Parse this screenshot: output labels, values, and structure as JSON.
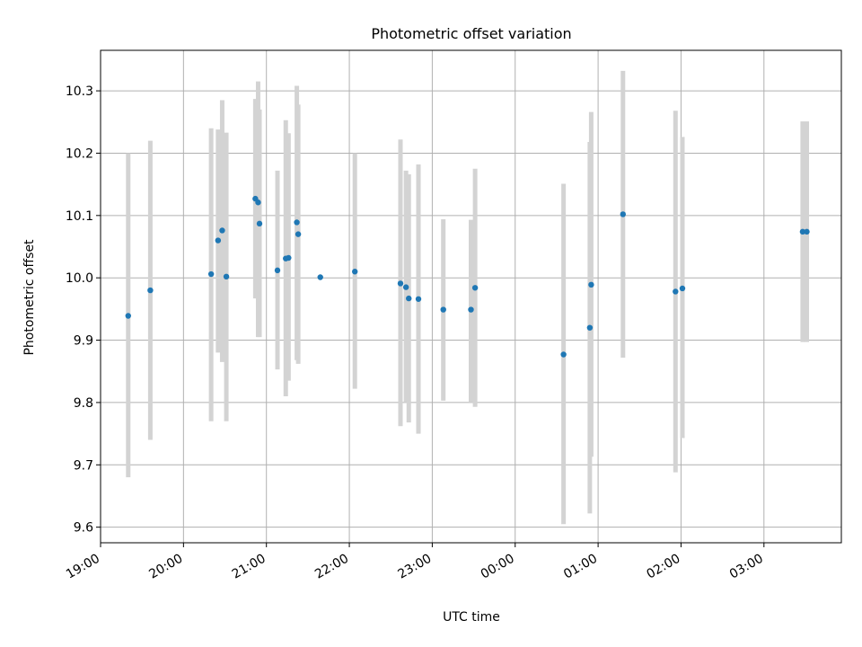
{
  "chart_data": {
    "type": "scatter",
    "title": "Photometric offset variation",
    "xlabel": "UTC time",
    "ylabel": "Photometric offset",
    "x_axis": "time",
    "x_tick_labels": [
      "19:00",
      "20:00",
      "21:00",
      "22:00",
      "23:00",
      "00:00",
      "01:00",
      "02:00",
      "03:00"
    ],
    "y_tick_labels": [
      "9.6",
      "9.7",
      "9.8",
      "9.9",
      "10.0",
      "10.1",
      "10.2",
      "10.3"
    ],
    "xlim": [
      "19:00",
      "03:56"
    ],
    "ylim": [
      9.575,
      10.365
    ],
    "grid": true,
    "colors": {
      "points": "#1f77b4",
      "error_bars": "#d3d3d3",
      "grid": "#b0b0b0"
    },
    "points": [
      {
        "time": "19:20",
        "y": 9.939,
        "y_lower": 9.68,
        "y_upper": 10.2
      },
      {
        "time": "19:36",
        "y": 9.98,
        "y_lower": 9.74,
        "y_upper": 10.22
      },
      {
        "time": "20:20",
        "y": 10.006,
        "y_lower": 9.77,
        "y_upper": 10.24
      },
      {
        "time": "20:25",
        "y": 10.06,
        "y_lower": 9.88,
        "y_upper": 10.238
      },
      {
        "time": "20:28",
        "y": 10.076,
        "y_lower": 9.865,
        "y_upper": 10.285
      },
      {
        "time": "20:31",
        "y": 10.002,
        "y_lower": 9.77,
        "y_upper": 10.233
      },
      {
        "time": "20:52",
        "y": 10.127,
        "y_lower": 9.967,
        "y_upper": 10.287
      },
      {
        "time": "20:54",
        "y": 10.121,
        "y_lower": 9.905,
        "y_upper": 10.315
      },
      {
        "time": "20:55",
        "y": 10.087,
        "y_lower": 9.905,
        "y_upper": 10.27
      },
      {
        "time": "21:08",
        "y": 10.012,
        "y_lower": 9.853,
        "y_upper": 10.172
      },
      {
        "time": "21:14",
        "y": 10.031,
        "y_lower": 9.81,
        "y_upper": 10.253
      },
      {
        "time": "21:16",
        "y": 10.032,
        "y_lower": 9.835,
        "y_upper": 10.232
      },
      {
        "time": "21:22",
        "y": 10.089,
        "y_lower": 9.868,
        "y_upper": 10.308
      },
      {
        "time": "21:23",
        "y": 10.07,
        "y_lower": 9.862,
        "y_upper": 10.278
      },
      {
        "time": "21:39",
        "y": 10.001,
        "y_lower": null,
        "y_upper": null
      },
      {
        "time": "22:04",
        "y": 10.01,
        "y_lower": 9.822,
        "y_upper": 10.2
      },
      {
        "time": "22:37",
        "y": 9.991,
        "y_lower": 9.762,
        "y_upper": 10.222
      },
      {
        "time": "22:41",
        "y": 9.985,
        "y_lower": 9.8,
        "y_upper": 10.172
      },
      {
        "time": "22:43",
        "y": 9.967,
        "y_lower": 9.768,
        "y_upper": 10.166
      },
      {
        "time": "22:50",
        "y": 9.966,
        "y_lower": 9.75,
        "y_upper": 10.182
      },
      {
        "time": "23:08",
        "y": 9.949,
        "y_lower": 9.803,
        "y_upper": 10.094
      },
      {
        "time": "23:28",
        "y": 9.949,
        "y_lower": 9.8,
        "y_upper": 10.093
      },
      {
        "time": "23:31",
        "y": 9.984,
        "y_lower": 9.793,
        "y_upper": 10.175
      },
      {
        "time": "00:35",
        "y": 9.877,
        "y_lower": 9.605,
        "y_upper": 10.151
      },
      {
        "time": "00:54",
        "y": 9.92,
        "y_lower": 9.622,
        "y_upper": 10.218
      },
      {
        "time": "00:55",
        "y": 9.989,
        "y_lower": 9.713,
        "y_upper": 10.266
      },
      {
        "time": "01:18",
        "y": 10.102,
        "y_lower": 9.872,
        "y_upper": 10.332
      },
      {
        "time": "01:56",
        "y": 9.978,
        "y_lower": 9.688,
        "y_upper": 10.268
      },
      {
        "time": "02:01",
        "y": 9.983,
        "y_lower": 9.743,
        "y_upper": 10.226
      },
      {
        "time": "03:28",
        "y": 10.074,
        "y_lower": 9.897,
        "y_upper": 10.251
      },
      {
        "time": "03:31",
        "y": 10.074,
        "y_lower": 9.897,
        "y_upper": 10.251
      }
    ]
  }
}
